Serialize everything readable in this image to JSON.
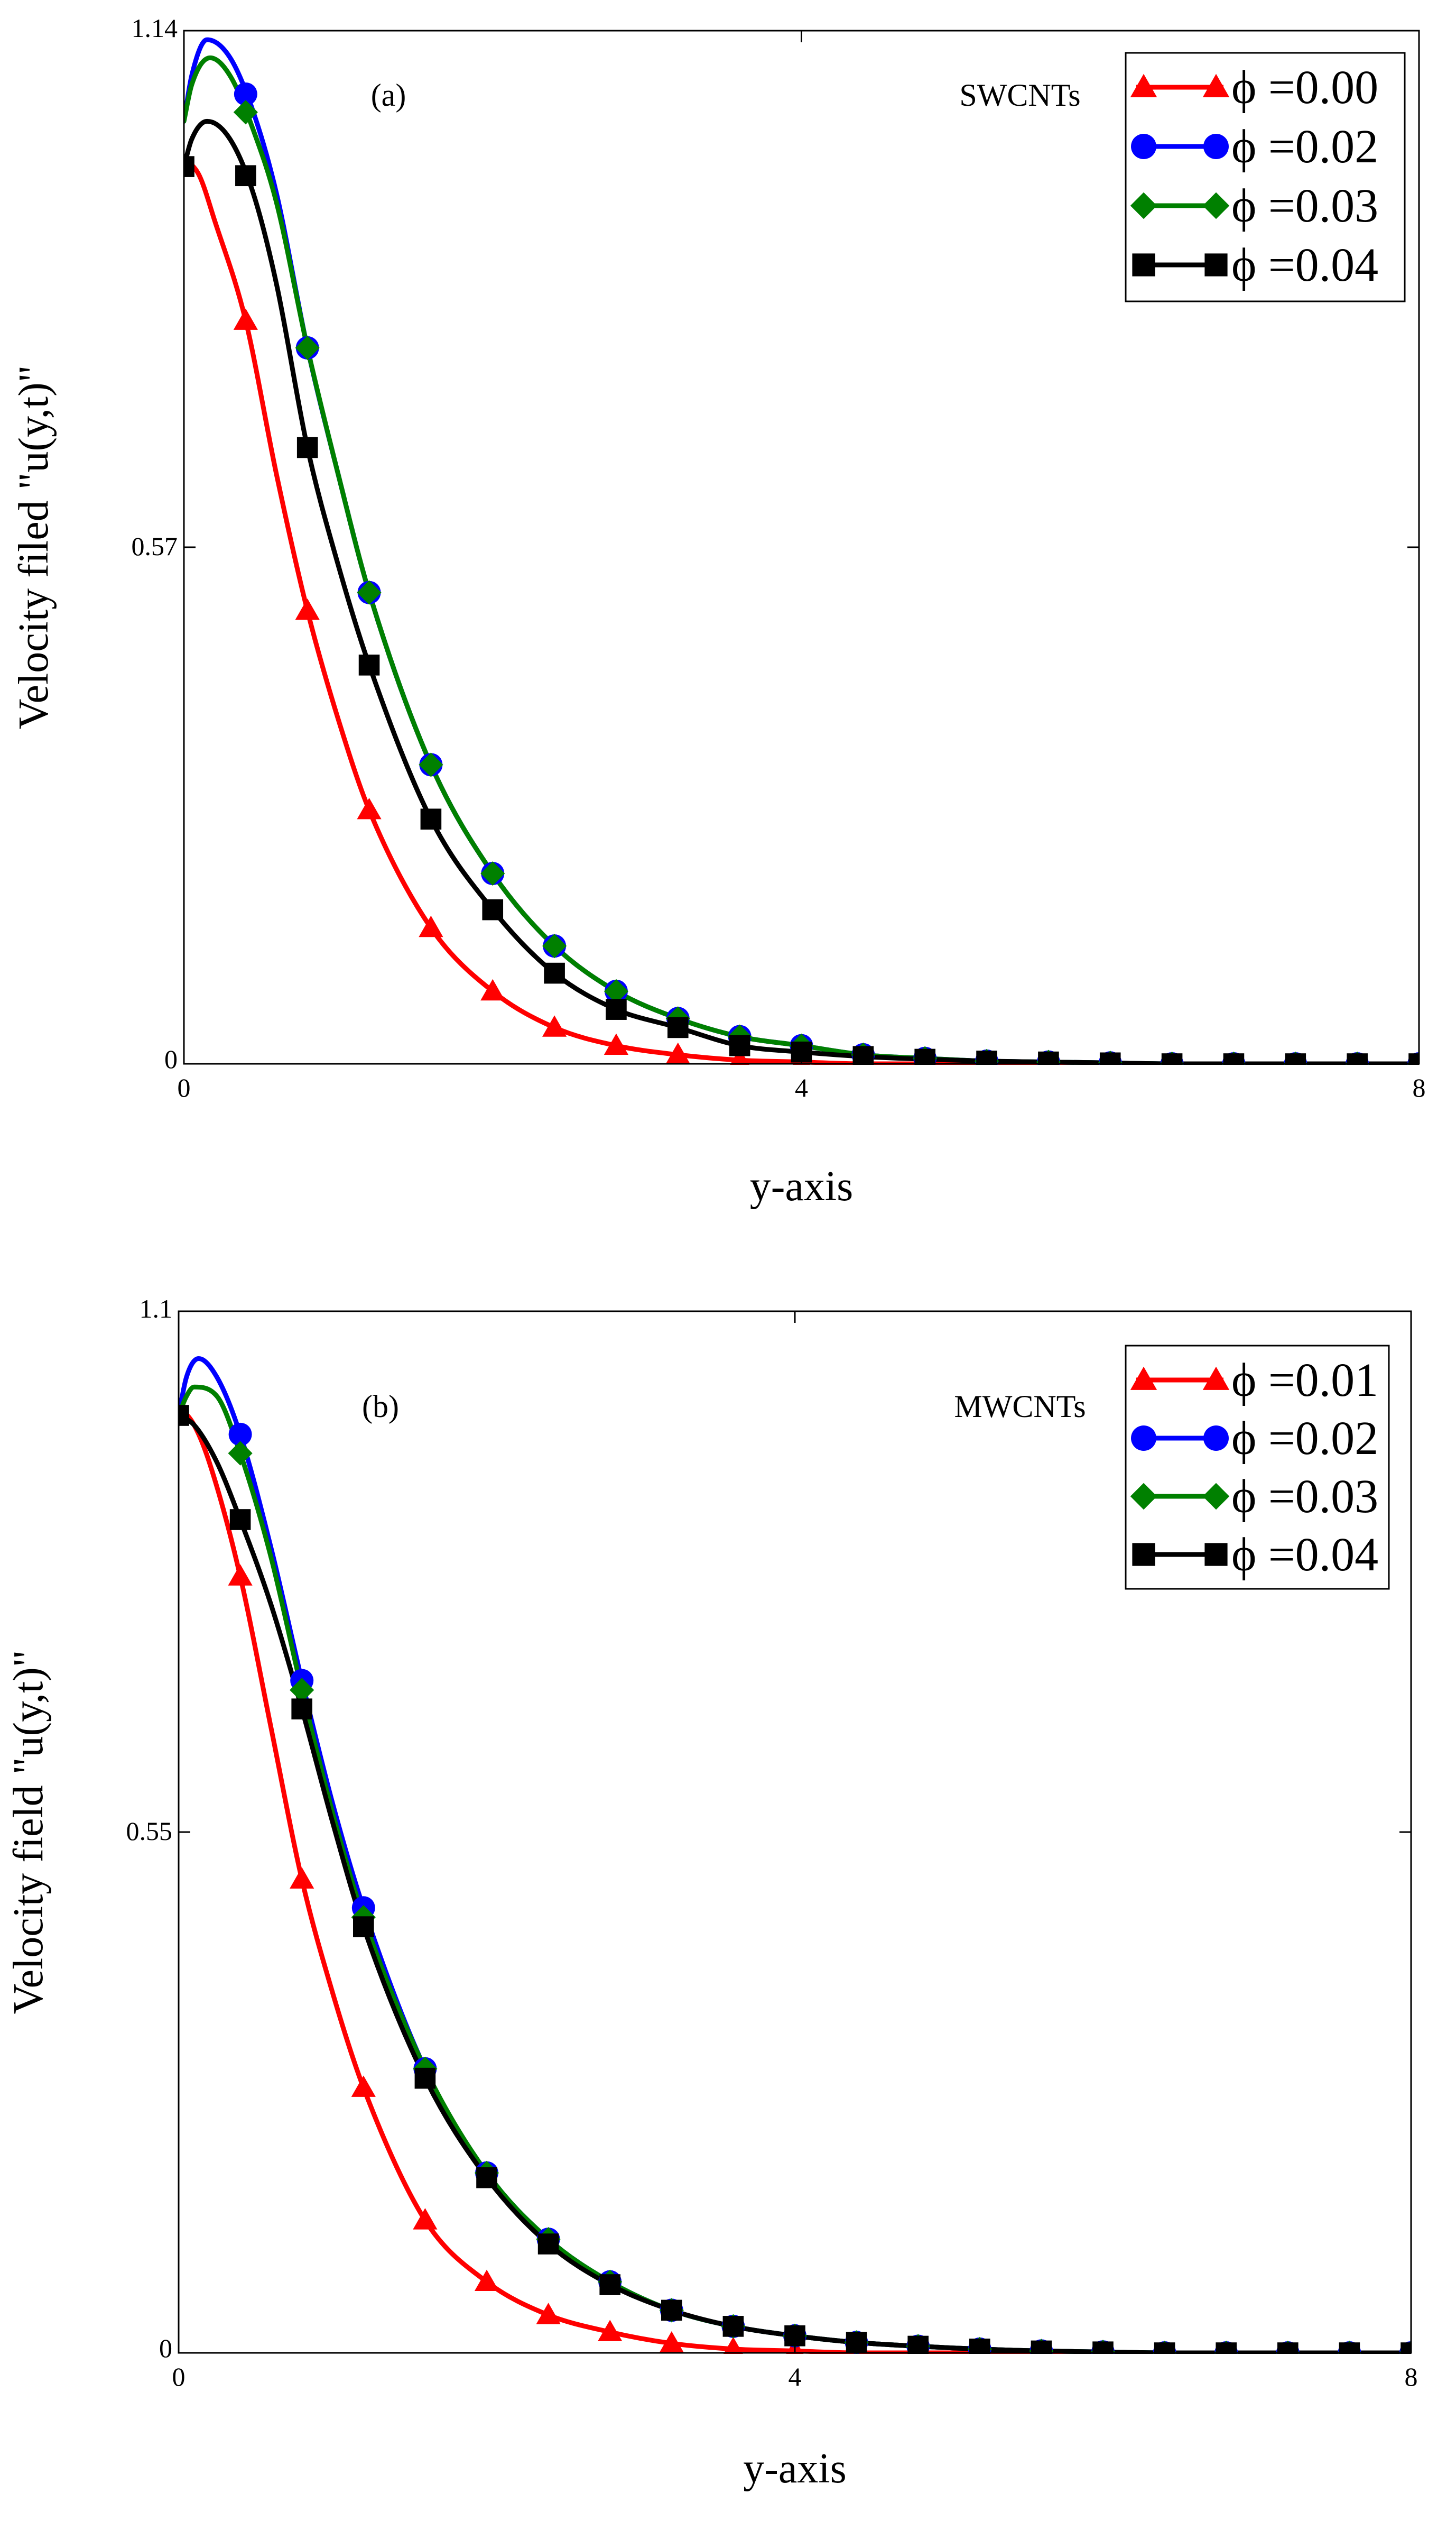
{
  "chart_data": [
    {
      "type": "line",
      "panel_label": "(a)",
      "annotation": "SWCNTs",
      "xlabel": "y-axis",
      "ylabel": "Velocity filed \"u(y,t)\"",
      "xlim": [
        0,
        8
      ],
      "ylim": [
        0,
        1.14
      ],
      "xticks": [
        "0",
        "4",
        "8"
      ],
      "yticks": [
        "0",
        "0.57",
        "1.14"
      ],
      "legend_position": "top-right",
      "series": [
        {
          "name": "ϕ =0.00",
          "color": "#ff0000",
          "marker": "triangle",
          "x": [
            0,
            0.1,
            0.2,
            0.4,
            0.6,
            0.8,
            1.0,
            1.2,
            1.6,
            2.0,
            2.4,
            2.8,
            3.2,
            3.6,
            4.0,
            4.4,
            4.8,
            5.2,
            5.6,
            6.0,
            6.4,
            6.8,
            7.2,
            7.6,
            8.0
          ],
          "y": [
            1.0,
            0.98,
            0.93,
            0.82,
            0.65,
            0.5,
            0.38,
            0.28,
            0.15,
            0.08,
            0.04,
            0.02,
            0.01,
            0.004,
            0.002,
            0.0,
            0.0,
            0.0,
            0.0,
            0.0,
            0.0,
            0.0,
            0.0,
            0.0,
            0.0
          ],
          "marker_x": [
            0.4,
            0.8,
            1.2,
            1.6,
            2.0,
            2.4,
            2.8,
            3.2,
            3.6,
            4.0,
            4.4,
            4.8,
            5.2,
            5.6,
            6.0,
            6.4,
            6.8,
            7.2,
            7.6,
            8.0
          ]
        },
        {
          "name": "ϕ =0.02",
          "color": "#0000ff",
          "marker": "circle",
          "x": [
            0,
            0.05,
            0.15,
            0.3,
            0.45,
            0.6,
            0.8,
            1.0,
            1.2,
            1.6,
            2.0,
            2.4,
            2.8,
            3.2,
            3.6,
            4.0,
            4.4,
            4.8,
            5.2,
            5.6,
            6.0,
            6.4,
            6.8,
            7.2,
            7.6,
            8.0
          ],
          "y": [
            1.04,
            1.09,
            1.13,
            1.11,
            1.05,
            0.96,
            0.79,
            0.65,
            0.52,
            0.33,
            0.21,
            0.13,
            0.08,
            0.05,
            0.03,
            0.02,
            0.01,
            0.006,
            0.003,
            0.002,
            0.001,
            0.0,
            0.0,
            0.0,
            0.0,
            0.0
          ],
          "marker_x": [
            0.4,
            0.8,
            1.2,
            1.6,
            2.0,
            2.4,
            2.8,
            3.2,
            3.6,
            4.0,
            4.4,
            4.8,
            5.2,
            5.6,
            6.0,
            6.4,
            6.8,
            7.2,
            7.6,
            8.0
          ]
        },
        {
          "name": "ϕ =0.03",
          "color": "#008000",
          "marker": "diamond",
          "x": [
            0,
            0.05,
            0.17,
            0.3,
            0.45,
            0.6,
            0.8,
            1.0,
            1.2,
            1.6,
            2.0,
            2.4,
            2.8,
            3.2,
            3.6,
            4.0,
            4.4,
            4.8,
            5.2,
            5.6,
            6.0,
            6.4,
            6.8,
            7.2,
            7.6,
            8.0
          ],
          "y": [
            1.04,
            1.08,
            1.11,
            1.09,
            1.03,
            0.95,
            0.79,
            0.65,
            0.52,
            0.33,
            0.21,
            0.13,
            0.08,
            0.05,
            0.03,
            0.02,
            0.01,
            0.006,
            0.003,
            0.002,
            0.001,
            0.0,
            0.0,
            0.0,
            0.0,
            0.0
          ],
          "marker_x": [
            0.4,
            0.8,
            1.2,
            1.6,
            2.0,
            2.4,
            2.8,
            3.2,
            3.6,
            4.0,
            4.4,
            4.8,
            5.2,
            5.6,
            6.0,
            6.4,
            6.8,
            7.2,
            7.6,
            8.0
          ]
        },
        {
          "name": "ϕ =0.04",
          "color": "#000000",
          "marker": "square",
          "x": [
            0,
            0.05,
            0.15,
            0.3,
            0.45,
            0.6,
            0.8,
            1.0,
            1.2,
            1.6,
            2.0,
            2.4,
            2.8,
            3.2,
            3.6,
            4.0,
            4.4,
            4.8,
            5.2,
            5.6,
            6.0,
            6.4,
            6.8,
            7.2,
            7.6,
            8.0
          ],
          "y": [
            0.99,
            1.02,
            1.04,
            1.02,
            0.96,
            0.86,
            0.68,
            0.55,
            0.44,
            0.27,
            0.17,
            0.1,
            0.06,
            0.04,
            0.02,
            0.013,
            0.008,
            0.005,
            0.003,
            0.002,
            0.001,
            0.0,
            0.0,
            0.0,
            0.0,
            0.0
          ],
          "marker_x": [
            0,
            0.4,
            0.8,
            1.2,
            1.6,
            2.0,
            2.4,
            2.8,
            3.2,
            3.6,
            4.0,
            4.4,
            4.8,
            5.2,
            5.6,
            6.0,
            6.4,
            6.8,
            7.2,
            7.6,
            8.0
          ]
        }
      ]
    },
    {
      "type": "line",
      "panel_label": "(b)",
      "annotation": "MWCNTs",
      "xlabel": "y-axis",
      "ylabel": "Velocity field \"u(y,t)\"",
      "xlim": [
        0,
        8
      ],
      "ylim": [
        0,
        1.1
      ],
      "xticks": [
        "0",
        "4",
        "8"
      ],
      "yticks": [
        "0",
        "0.55",
        "1.1"
      ],
      "legend_position": "top-right",
      "series": [
        {
          "name": "ϕ =0.01",
          "color": "#ff0000",
          "marker": "triangle",
          "x": [
            0,
            0.1,
            0.2,
            0.4,
            0.6,
            0.8,
            1.0,
            1.2,
            1.6,
            2.0,
            2.4,
            2.8,
            3.2,
            3.6,
            4.0,
            4.4,
            4.8,
            5.2,
            5.6,
            6.0,
            6.4,
            6.8,
            7.2,
            7.6,
            8.0
          ],
          "y": [
            1.0,
            0.98,
            0.94,
            0.82,
            0.66,
            0.5,
            0.38,
            0.28,
            0.14,
            0.075,
            0.04,
            0.022,
            0.01,
            0.004,
            0.002,
            0.0,
            0.0,
            0.0,
            0.0,
            0.0,
            0.0,
            0.0,
            0.0,
            0.0,
            0.0
          ],
          "marker_x": [
            0.4,
            0.8,
            1.2,
            1.6,
            2.0,
            2.4,
            2.8,
            3.2,
            3.6,
            4.0,
            4.4,
            4.8,
            5.2,
            5.6,
            6.0,
            6.4,
            6.8,
            7.2,
            7.6,
            8.0
          ]
        },
        {
          "name": "ϕ =0.02",
          "color": "#0000ff",
          "marker": "circle",
          "x": [
            0,
            0.05,
            0.13,
            0.25,
            0.4,
            0.6,
            0.8,
            1.0,
            1.2,
            1.6,
            2.0,
            2.4,
            2.8,
            3.2,
            3.6,
            4.0,
            4.4,
            4.8,
            5.2,
            5.6,
            6.0,
            6.4,
            6.8,
            7.2,
            7.6,
            8.0
          ],
          "y": [
            0.99,
            1.03,
            1.05,
            1.03,
            0.97,
            0.85,
            0.71,
            0.58,
            0.47,
            0.3,
            0.19,
            0.12,
            0.075,
            0.045,
            0.028,
            0.018,
            0.011,
            0.007,
            0.004,
            0.002,
            0.001,
            0.0,
            0.0,
            0.0,
            0.0,
            0.0
          ],
          "marker_x": [
            0.4,
            0.8,
            1.2,
            1.6,
            2.0,
            2.4,
            2.8,
            3.2,
            3.6,
            4.0,
            4.4,
            4.8,
            5.2,
            5.6,
            6.0,
            6.4,
            6.8,
            7.2,
            7.6,
            8.0
          ]
        },
        {
          "name": "ϕ =0.03",
          "color": "#008000",
          "marker": "diamond",
          "x": [
            0,
            0.05,
            0.1,
            0.25,
            0.4,
            0.6,
            0.8,
            1.0,
            1.2,
            1.6,
            2.0,
            2.4,
            2.8,
            3.2,
            3.6,
            4.0,
            4.4,
            4.8,
            5.2,
            5.6,
            6.0,
            6.4,
            6.8,
            7.2,
            7.6,
            8.0
          ],
          "y": [
            0.99,
            1.01,
            1.02,
            1.01,
            0.95,
            0.84,
            0.7,
            0.57,
            0.46,
            0.3,
            0.19,
            0.12,
            0.075,
            0.045,
            0.028,
            0.018,
            0.011,
            0.007,
            0.004,
            0.002,
            0.001,
            0.0,
            0.0,
            0.0,
            0.0,
            0.0
          ],
          "marker_x": [
            0.4,
            0.8,
            1.2,
            1.6,
            2.0,
            2.4,
            2.8,
            3.2,
            3.6,
            4.0,
            4.4,
            4.8,
            5.2,
            5.6,
            6.0,
            6.4,
            6.8,
            7.2,
            7.6,
            8.0
          ]
        },
        {
          "name": "ϕ =0.04",
          "color": "#000000",
          "marker": "square",
          "x": [
            0,
            0.1,
            0.25,
            0.4,
            0.6,
            0.8,
            1.0,
            1.2,
            1.6,
            2.0,
            2.4,
            2.8,
            3.2,
            3.6,
            4.0,
            4.4,
            4.8,
            5.2,
            5.6,
            6.0,
            6.4,
            6.8,
            7.2,
            7.6,
            8.0
          ],
          "y": [
            0.99,
            0.98,
            0.94,
            0.88,
            0.79,
            0.68,
            0.56,
            0.45,
            0.29,
            0.185,
            0.115,
            0.072,
            0.045,
            0.028,
            0.018,
            0.011,
            0.007,
            0.004,
            0.002,
            0.001,
            0.0,
            0.0,
            0.0,
            0.0,
            0.0
          ],
          "marker_x": [
            0,
            0.4,
            0.8,
            1.2,
            1.6,
            2.0,
            2.4,
            2.8,
            3.2,
            3.6,
            4.0,
            4.4,
            4.8,
            5.2,
            5.6,
            6.0,
            6.4,
            6.8,
            7.2,
            7.6,
            8.0
          ]
        }
      ]
    }
  ]
}
